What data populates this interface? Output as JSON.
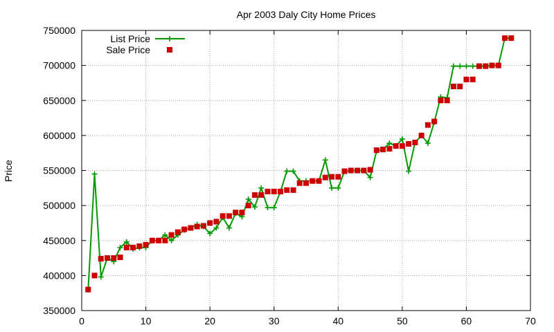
{
  "chart_data": {
    "type": "line",
    "title": "Apr 2003 Daly City Home Prices",
    "ylabel": "Price",
    "xlabel": "",
    "xlim": [
      0,
      70
    ],
    "ylim": [
      350000,
      750000
    ],
    "x_ticks": [
      "0",
      "10",
      "20",
      "30",
      "40",
      "50",
      "60",
      "70"
    ],
    "y_ticks": [
      "350000",
      "400000",
      "450000",
      "500000",
      "550000",
      "600000",
      "650000",
      "700000",
      "750000"
    ],
    "grid": true,
    "legend_position": "top-left",
    "series": [
      {
        "name": "List Price",
        "style": "linespoints",
        "color": "#009900",
        "x": [
          1,
          2,
          3,
          4,
          5,
          6,
          7,
          8,
          9,
          10,
          11,
          12,
          13,
          14,
          15,
          16,
          17,
          18,
          19,
          20,
          21,
          22,
          23,
          24,
          25,
          26,
          27,
          28,
          29,
          30,
          31,
          32,
          33,
          34,
          35,
          36,
          37,
          38,
          39,
          40,
          41,
          42,
          43,
          44,
          45,
          46,
          47,
          48,
          49,
          50,
          51,
          52,
          53,
          54,
          55,
          56,
          57,
          58,
          59,
          60,
          61,
          62,
          63,
          64,
          65,
          66,
          67
        ],
        "y": [
          380000,
          545000,
          398000,
          425000,
          420000,
          440000,
          448000,
          438000,
          440000,
          440000,
          450000,
          450000,
          458000,
          450000,
          458000,
          465000,
          468000,
          473000,
          470000,
          460000,
          468000,
          483000,
          468000,
          489000,
          484000,
          509000,
          498000,
          525000,
          497000,
          497000,
          520000,
          549000,
          549000,
          535000,
          535000,
          535000,
          535000,
          565000,
          525000,
          525000,
          549000,
          550000,
          550000,
          550000,
          540000,
          578000,
          580000,
          589000,
          585000,
          595000,
          549000,
          590000,
          600000,
          589000,
          619000,
          655000,
          654000,
          699000,
          699000,
          699000,
          699000,
          699000,
          699000,
          700000,
          700000,
          739000,
          739000
        ]
      },
      {
        "name": "Sale Price",
        "style": "points",
        "color": "#cc0000",
        "x": [
          1,
          2,
          3,
          4,
          5,
          6,
          7,
          8,
          9,
          10,
          11,
          12,
          13,
          14,
          15,
          16,
          17,
          18,
          19,
          20,
          21,
          22,
          23,
          24,
          25,
          26,
          27,
          28,
          29,
          30,
          31,
          32,
          33,
          34,
          35,
          36,
          37,
          38,
          39,
          40,
          41,
          42,
          43,
          44,
          45,
          46,
          47,
          48,
          49,
          50,
          51,
          52,
          53,
          54,
          55,
          56,
          57,
          58,
          59,
          60,
          61,
          62,
          63,
          64,
          65,
          66,
          67
        ],
        "y": [
          380000,
          400000,
          424000,
          425000,
          425000,
          426000,
          440000,
          440000,
          442000,
          444000,
          450000,
          450000,
          450000,
          458000,
          462000,
          466000,
          468000,
          470000,
          471000,
          475000,
          477000,
          485000,
          485000,
          490000,
          490000,
          500000,
          515000,
          515000,
          520000,
          520000,
          520000,
          522000,
          522000,
          532000,
          532000,
          535000,
          535000,
          540000,
          541000,
          541000,
          549000,
          550000,
          550000,
          550000,
          551000,
          579000,
          580000,
          581000,
          585000,
          585000,
          588000,
          590000,
          600000,
          615000,
          620000,
          650000,
          650000,
          670000,
          670000,
          680000,
          680000,
          699000,
          699000,
          700000,
          700000,
          739000,
          739000
        ]
      }
    ]
  }
}
